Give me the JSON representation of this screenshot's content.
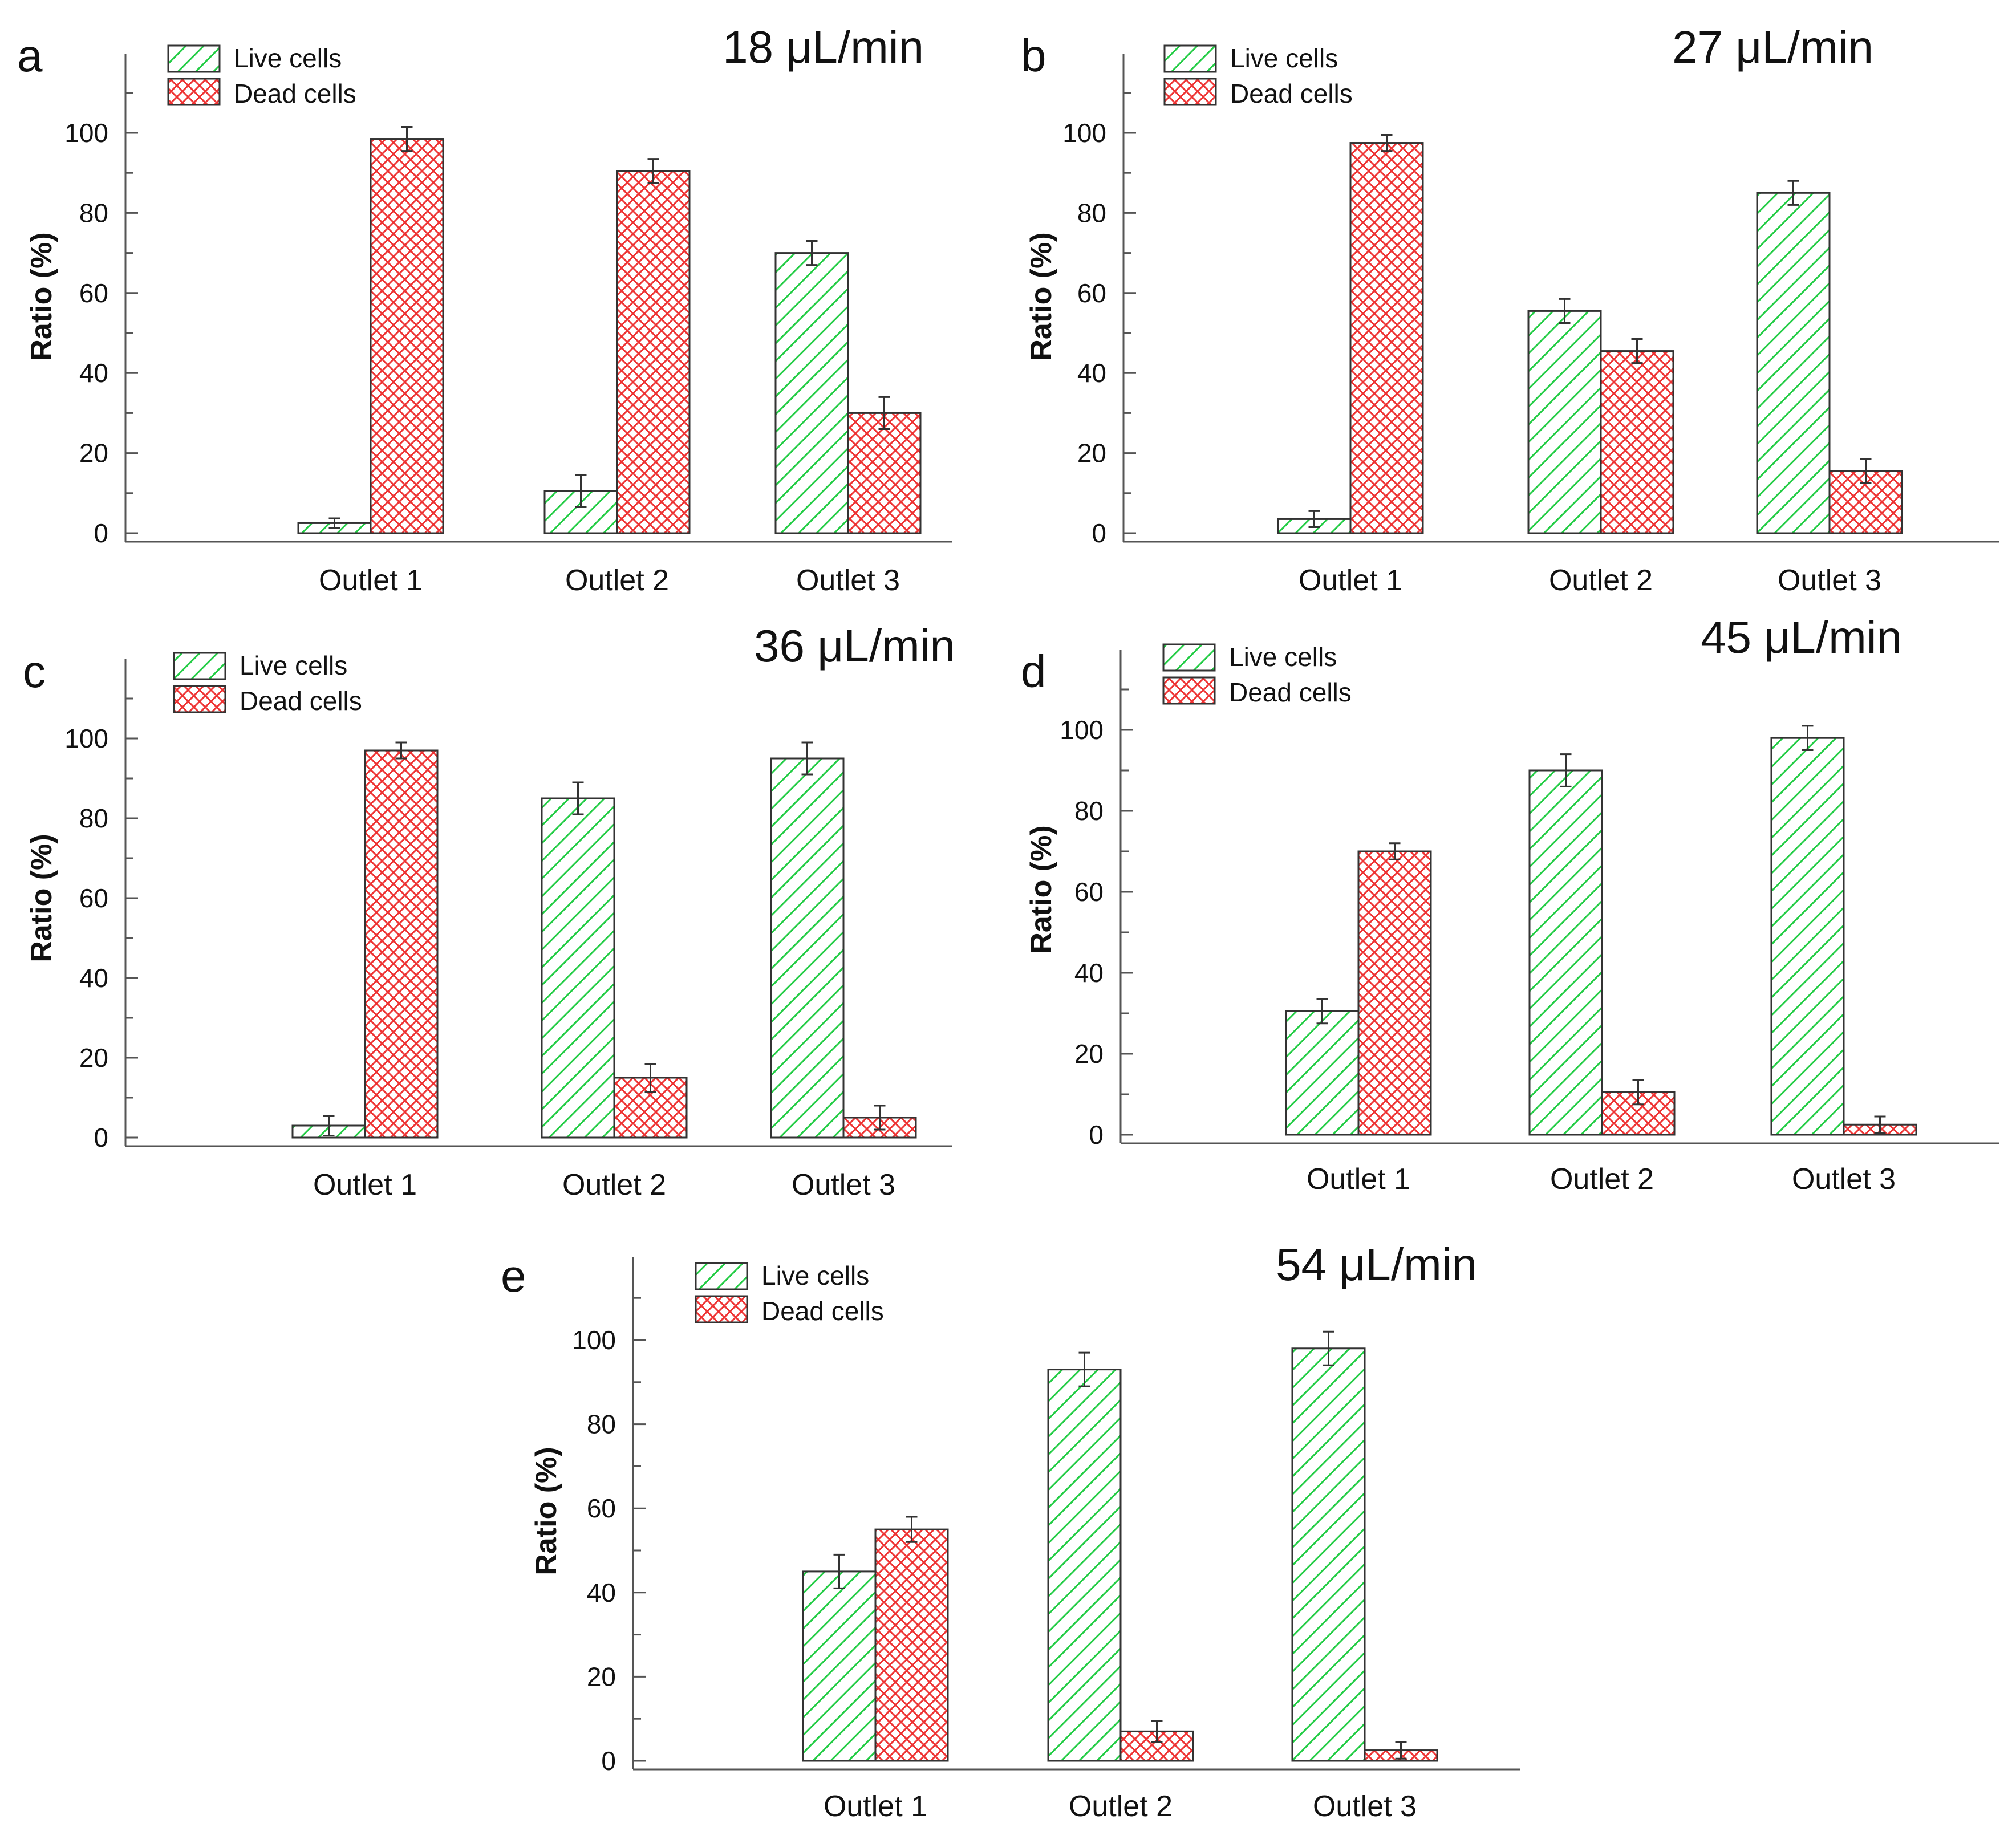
{
  "legend": {
    "live_label": "Live cells",
    "dead_label": "Dead cells",
    "live_color": "#22cc44",
    "dead_color": "#ee3333"
  },
  "chart_data": [
    {
      "panel": "a",
      "type": "bar",
      "title": "18 μL/min",
      "ylabel": "Ratio (%)",
      "xlabel": "",
      "ylim": [
        0,
        115
      ],
      "yticks": [
        0,
        20,
        40,
        60,
        80,
        100
      ],
      "categories": [
        "Outlet 1",
        "Outlet 2",
        "Outlet 3"
      ],
      "series": [
        {
          "name": "Live cells",
          "values": [
            2.5,
            10.5,
            70
          ],
          "errors": [
            1.2,
            4,
            3
          ]
        },
        {
          "name": "Dead cells",
          "values": [
            98.5,
            90.5,
            30
          ],
          "errors": [
            3,
            3,
            4
          ]
        }
      ]
    },
    {
      "panel": "b",
      "type": "bar",
      "title": "27 μL/min",
      "ylabel": "Ratio (%)",
      "xlabel": "",
      "ylim": [
        0,
        115
      ],
      "yticks": [
        0,
        20,
        40,
        60,
        80,
        100
      ],
      "categories": [
        "Outlet 1",
        "Outlet 2",
        "Outlet 3"
      ],
      "series": [
        {
          "name": "Live cells",
          "values": [
            3.5,
            55.5,
            85
          ],
          "errors": [
            2,
            3,
            3
          ]
        },
        {
          "name": "Dead cells",
          "values": [
            97.5,
            45.5,
            15.5
          ],
          "errors": [
            2,
            3,
            3
          ]
        }
      ]
    },
    {
      "panel": "c",
      "type": "bar",
      "title": "36 μL/min",
      "ylabel": "Ratio (%)",
      "xlabel": "",
      "ylim": [
        0,
        115
      ],
      "yticks": [
        0,
        20,
        40,
        60,
        80,
        100
      ],
      "categories": [
        "Outlet 1",
        "Outlet 2",
        "Outlet 3"
      ],
      "series": [
        {
          "name": "Live cells",
          "values": [
            3,
            85,
            95
          ],
          "errors": [
            2.5,
            4,
            4
          ]
        },
        {
          "name": "Dead cells",
          "values": [
            97,
            15,
            5
          ],
          "errors": [
            2,
            3.5,
            3
          ]
        }
      ]
    },
    {
      "panel": "d",
      "type": "bar",
      "title": "45 μL/min",
      "ylabel": "Ratio (%)",
      "xlabel": "",
      "ylim": [
        0,
        115
      ],
      "yticks": [
        0,
        20,
        40,
        60,
        80,
        100
      ],
      "categories": [
        "Outlet 1",
        "Outlet 2",
        "Outlet 3"
      ],
      "series": [
        {
          "name": "Live cells",
          "values": [
            30.5,
            90,
            98
          ],
          "errors": [
            3,
            4,
            3
          ]
        },
        {
          "name": "Dead cells",
          "values": [
            70,
            10.5,
            2.5
          ],
          "errors": [
            2,
            3,
            2
          ]
        }
      ]
    },
    {
      "panel": "e",
      "type": "bar",
      "title": "54 μL/min",
      "ylabel": "Ratio (%)",
      "xlabel": "",
      "ylim": [
        0,
        115
      ],
      "yticks": [
        0,
        20,
        40,
        60,
        80,
        100
      ],
      "categories": [
        "Outlet 1",
        "Outlet 2",
        "Outlet 3"
      ],
      "series": [
        {
          "name": "Live cells",
          "values": [
            45,
            93,
            98
          ],
          "errors": [
            4,
            4,
            4
          ]
        },
        {
          "name": "Dead cells",
          "values": [
            55,
            7,
            2.5
          ],
          "errors": [
            3,
            2.5,
            2
          ]
        }
      ]
    }
  ]
}
